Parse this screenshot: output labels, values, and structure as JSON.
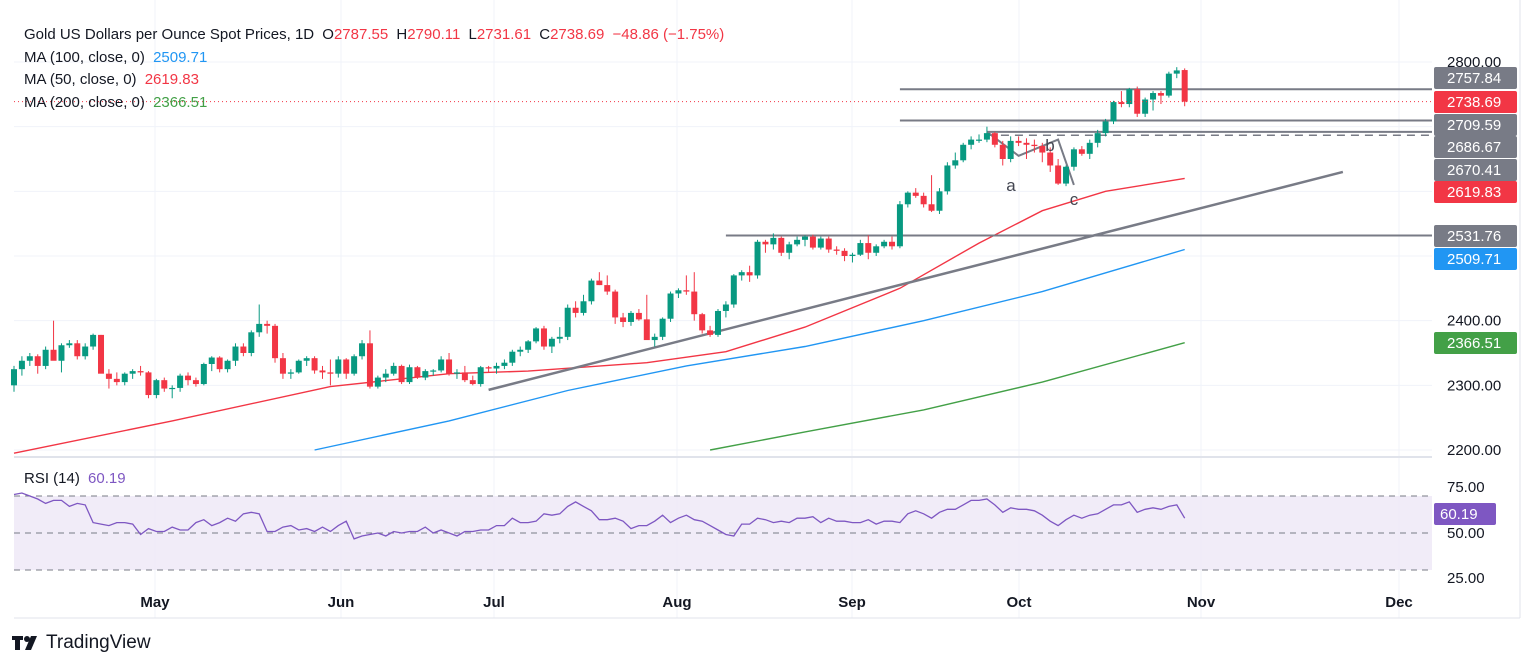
{
  "header": {
    "symbol_title": "Gold US Dollars per Ounce Spot Prices, 1D",
    "ohlc": {
      "open_prefix": "O",
      "open": "2787.55",
      "high_prefix": "H",
      "high": "2790.11",
      "low_prefix": "L",
      "low": "2731.61",
      "close_prefix": "C",
      "close": "2738.69",
      "change": "−48.86 (−1.75%)"
    }
  },
  "indicators": {
    "ma100": {
      "label": "MA (100, close, 0)",
      "value": "2509.71",
      "color": "#2196f3"
    },
    "ma50": {
      "label": "MA (50, close, 0)",
      "value": "2619.83",
      "color": "#f23645"
    },
    "ma200": {
      "label": "MA (200, close, 0)",
      "value": "2366.51",
      "color": "#43a047"
    },
    "rsi": {
      "label": "RSI (14)",
      "value": "60.19",
      "color": "#7e57c2"
    }
  },
  "colors": {
    "up": "#089981",
    "down": "#f23645",
    "drawing": "#787b86",
    "rsi_band": "#ede7f6",
    "grid": "#f0f3fa"
  },
  "brand": {
    "name": "TradingView"
  },
  "chart_data": {
    "type": "candlestick",
    "title": "Gold US Dollars per Ounce Spot Prices, 1D",
    "price_axis": {
      "ticks": [
        "2800.00",
        "2400.00",
        "2300.00",
        "2200.00"
      ],
      "range": [
        2200,
        2800
      ]
    },
    "time_axis": {
      "ticks": [
        "May",
        "Jun",
        "Jul",
        "Aug",
        "Sep",
        "Oct",
        "Nov",
        "Dec"
      ]
    },
    "price_tags": [
      {
        "value": "2757.84",
        "kind": "drawing"
      },
      {
        "value": "2738.69",
        "kind": "last"
      },
      {
        "value": "2709.59",
        "kind": "drawing"
      },
      {
        "value": "2686.67",
        "kind": "drawing"
      },
      {
        "value": "2670.41",
        "kind": "drawing"
      },
      {
        "value": "2619.83",
        "kind": "ma50"
      },
      {
        "value": "2531.76",
        "kind": "drawing"
      },
      {
        "value": "2509.71",
        "kind": "ma100"
      },
      {
        "value": "2366.51",
        "kind": "ma200"
      }
    ],
    "horizontal_levels": [
      {
        "price": 2757.84,
        "from_index": 112,
        "style": "solid"
      },
      {
        "price": 2709.59,
        "from_index": 112,
        "style": "solid"
      },
      {
        "price": 2692.0,
        "from_index": 123,
        "style": "solid"
      },
      {
        "price": 2686.67,
        "from_index": 123,
        "style": "dashed"
      },
      {
        "price": 2531.76,
        "from_index": 90,
        "style": "solid"
      }
    ],
    "trendline": {
      "start": {
        "index": 60,
        "price": 2293
      },
      "end": {
        "index": 168,
        "price": 2630
      }
    },
    "wave_labels": [
      {
        "text": "a",
        "index": 127,
        "price": 2658
      },
      {
        "text": "b",
        "index": 132,
        "price": 2682
      },
      {
        "text": "c",
        "index": 134,
        "price": 2602
      }
    ],
    "wave_path": [
      {
        "index": 123,
        "price": 2692
      },
      {
        "index": 127,
        "price": 2655
      },
      {
        "index": 132,
        "price": 2680
      },
      {
        "index": 134,
        "price": 2610
      }
    ],
    "candles": [
      [
        2300,
        2330,
        2290,
        2325
      ],
      [
        2325,
        2345,
        2315,
        2338
      ],
      [
        2338,
        2350,
        2330,
        2345
      ],
      [
        2345,
        2348,
        2318,
        2330
      ],
      [
        2330,
        2360,
        2325,
        2355
      ],
      [
        2355,
        2400,
        2340,
        2338
      ],
      [
        2338,
        2365,
        2320,
        2362
      ],
      [
        2362,
        2370,
        2358,
        2365
      ],
      [
        2365,
        2370,
        2340,
        2345
      ],
      [
        2345,
        2365,
        2340,
        2360
      ],
      [
        2360,
        2380,
        2355,
        2378
      ],
      [
        2378,
        2378,
        2330,
        2318
      ],
      [
        2318,
        2325,
        2295,
        2310
      ],
      [
        2310,
        2320,
        2300,
        2305
      ],
      [
        2305,
        2320,
        2300,
        2318
      ],
      [
        2318,
        2325,
        2310,
        2322
      ],
      [
        2322,
        2330,
        2315,
        2320
      ],
      [
        2320,
        2322,
        2280,
        2285
      ],
      [
        2285,
        2310,
        2280,
        2308
      ],
      [
        2308,
        2312,
        2290,
        2295
      ],
      [
        2295,
        2300,
        2280,
        2296
      ],
      [
        2296,
        2318,
        2290,
        2315
      ],
      [
        2315,
        2320,
        2300,
        2308
      ],
      [
        2308,
        2312,
        2298,
        2302
      ],
      [
        2302,
        2335,
        2300,
        2333
      ],
      [
        2333,
        2345,
        2322,
        2343
      ],
      [
        2343,
        2345,
        2320,
        2325
      ],
      [
        2325,
        2340,
        2320,
        2338
      ],
      [
        2338,
        2365,
        2330,
        2360
      ],
      [
        2360,
        2365,
        2345,
        2350
      ],
      [
        2350,
        2385,
        2345,
        2382
      ],
      [
        2382,
        2425,
        2375,
        2395
      ],
      [
        2395,
        2400,
        2380,
        2392
      ],
      [
        2392,
        2395,
        2335,
        2342
      ],
      [
        2342,
        2350,
        2310,
        2318
      ],
      [
        2318,
        2325,
        2310,
        2320
      ],
      [
        2320,
        2340,
        2318,
        2338
      ],
      [
        2338,
        2345,
        2330,
        2342
      ],
      [
        2342,
        2345,
        2318,
        2323
      ],
      [
        2323,
        2330,
        2310,
        2320
      ],
      [
        2320,
        2340,
        2300,
        2318
      ],
      [
        2318,
        2345,
        2312,
        2340
      ],
      [
        2340,
        2342,
        2310,
        2318
      ],
      [
        2318,
        2348,
        2315,
        2345
      ],
      [
        2345,
        2370,
        2340,
        2365
      ],
      [
        2365,
        2385,
        2295,
        2298
      ],
      [
        2298,
        2315,
        2295,
        2312
      ],
      [
        2312,
        2325,
        2305,
        2318
      ],
      [
        2318,
        2335,
        2315,
        2330
      ],
      [
        2330,
        2332,
        2302,
        2305
      ],
      [
        2305,
        2332,
        2302,
        2328
      ],
      [
        2328,
        2330,
        2310,
        2312
      ],
      [
        2312,
        2325,
        2308,
        2322
      ],
      [
        2322,
        2325,
        2315,
        2323
      ],
      [
        2323,
        2345,
        2320,
        2340
      ],
      [
        2340,
        2350,
        2315,
        2318
      ],
      [
        2318,
        2325,
        2310,
        2320
      ],
      [
        2320,
        2330,
        2305,
        2308
      ],
      [
        2308,
        2315,
        2300,
        2302
      ],
      [
        2302,
        2330,
        2298,
        2328
      ],
      [
        2328,
        2330,
        2320,
        2326
      ],
      [
        2326,
        2335,
        2318,
        2330
      ],
      [
        2330,
        2340,
        2325,
        2335
      ],
      [
        2335,
        2355,
        2330,
        2352
      ],
      [
        2352,
        2360,
        2345,
        2355
      ],
      [
        2355,
        2370,
        2350,
        2368
      ],
      [
        2368,
        2390,
        2365,
        2388
      ],
      [
        2388,
        2392,
        2355,
        2360
      ],
      [
        2360,
        2375,
        2350,
        2372
      ],
      [
        2372,
        2390,
        2365,
        2375
      ],
      [
        2375,
        2425,
        2370,
        2420
      ],
      [
        2420,
        2430,
        2405,
        2412
      ],
      [
        2412,
        2440,
        2408,
        2430
      ],
      [
        2430,
        2465,
        2425,
        2462
      ],
      [
        2462,
        2475,
        2455,
        2455
      ],
      [
        2455,
        2470,
        2440,
        2445
      ],
      [
        2445,
        2448,
        2395,
        2405
      ],
      [
        2405,
        2412,
        2390,
        2398
      ],
      [
        2398,
        2415,
        2392,
        2412
      ],
      [
        2412,
        2418,
        2400,
        2402
      ],
      [
        2402,
        2440,
        2400,
        2370
      ],
      [
        2370,
        2380,
        2360,
        2375
      ],
      [
        2375,
        2405,
        2370,
        2403
      ],
      [
        2403,
        2445,
        2398,
        2442
      ],
      [
        2442,
        2450,
        2435,
        2447
      ],
      [
        2447,
        2470,
        2440,
        2445
      ],
      [
        2445,
        2475,
        2400,
        2410
      ],
      [
        2410,
        2412,
        2380,
        2385
      ],
      [
        2385,
        2392,
        2375,
        2378
      ],
      [
        2378,
        2418,
        2375,
        2415
      ],
      [
        2415,
        2430,
        2405,
        2425
      ],
      [
        2425,
        2472,
        2420,
        2470
      ],
      [
        2470,
        2478,
        2462,
        2475
      ],
      [
        2475,
        2485,
        2460,
        2470
      ],
      [
        2470,
        2525,
        2465,
        2522
      ],
      [
        2522,
        2525,
        2505,
        2518
      ],
      [
        2518,
        2535,
        2510,
        2528
      ],
      [
        2528,
        2530,
        2500,
        2505
      ],
      [
        2505,
        2522,
        2495,
        2518
      ],
      [
        2518,
        2530,
        2515,
        2525
      ],
      [
        2525,
        2532,
        2515,
        2530
      ],
      [
        2530,
        2533,
        2510,
        2513
      ],
      [
        2513,
        2530,
        2510,
        2527
      ],
      [
        2527,
        2530,
        2505,
        2510
      ],
      [
        2510,
        2515,
        2502,
        2508
      ],
      [
        2508,
        2512,
        2492,
        2500
      ],
      [
        2500,
        2505,
        2490,
        2502
      ],
      [
        2502,
        2525,
        2500,
        2520
      ],
      [
        2520,
        2532,
        2495,
        2505
      ],
      [
        2505,
        2518,
        2500,
        2515
      ],
      [
        2515,
        2525,
        2512,
        2522
      ],
      [
        2522,
        2530,
        2510,
        2515
      ],
      [
        2515,
        2585,
        2512,
        2580
      ],
      [
        2580,
        2600,
        2575,
        2598
      ],
      [
        2598,
        2605,
        2590,
        2593
      ],
      [
        2593,
        2598,
        2575,
        2580
      ],
      [
        2580,
        2625,
        2568,
        2570
      ],
      [
        2570,
        2605,
        2565,
        2600
      ],
      [
        2600,
        2645,
        2595,
        2640
      ],
      [
        2640,
        2660,
        2635,
        2648
      ],
      [
        2648,
        2675,
        2645,
        2672
      ],
      [
        2672,
        2685,
        2665,
        2680
      ],
      [
        2680,
        2688,
        2675,
        2680
      ],
      [
        2680,
        2700,
        2676,
        2690
      ],
      [
        2690,
        2692,
        2668,
        2672
      ],
      [
        2672,
        2678,
        2640,
        2650
      ],
      [
        2650,
        2685,
        2645,
        2678
      ],
      [
        2678,
        2685,
        2670,
        2675
      ],
      [
        2675,
        2682,
        2650,
        2672
      ],
      [
        2672,
        2680,
        2660,
        2670
      ],
      [
        2670,
        2675,
        2645,
        2660
      ],
      [
        2660,
        2668,
        2630,
        2640
      ],
      [
        2640,
        2650,
        2610,
        2612
      ],
      [
        2612,
        2640,
        2608,
        2638
      ],
      [
        2638,
        2668,
        2632,
        2665
      ],
      [
        2665,
        2670,
        2655,
        2658
      ],
      [
        2658,
        2680,
        2650,
        2675
      ],
      [
        2675,
        2695,
        2668,
        2690
      ],
      [
        2690,
        2712,
        2685,
        2708
      ],
      [
        2708,
        2740,
        2704,
        2738
      ],
      [
        2738,
        2755,
        2730,
        2735
      ],
      [
        2735,
        2760,
        2730,
        2758
      ],
      [
        2758,
        2762,
        2715,
        2720
      ],
      [
        2720,
        2745,
        2715,
        2742
      ],
      [
        2742,
        2755,
        2725,
        2752
      ],
      [
        2752,
        2755,
        2735,
        2748
      ],
      [
        2748,
        2785,
        2745,
        2782
      ],
      [
        2782,
        2792,
        2775,
        2787
      ],
      [
        2787.55,
        2790.11,
        2731.61,
        2738.69
      ]
    ],
    "ma50": [
      [
        0,
        2195
      ],
      [
        20,
        2245
      ],
      [
        40,
        2298
      ],
      [
        55,
        2318
      ],
      [
        65,
        2322
      ],
      [
        80,
        2335
      ],
      [
        90,
        2352
      ],
      [
        100,
        2390
      ],
      [
        112,
        2450
      ],
      [
        122,
        2520
      ],
      [
        130,
        2570
      ],
      [
        138,
        2600
      ],
      [
        148,
        2620
      ]
    ],
    "ma100": [
      [
        38,
        2200
      ],
      [
        55,
        2245
      ],
      [
        70,
        2292
      ],
      [
        85,
        2330
      ],
      [
        100,
        2360
      ],
      [
        115,
        2400
      ],
      [
        130,
        2445
      ],
      [
        148,
        2510
      ]
    ],
    "ma200": [
      [
        88,
        2200
      ],
      [
        100,
        2228
      ],
      [
        115,
        2262
      ],
      [
        130,
        2305
      ],
      [
        148,
        2366
      ]
    ],
    "rsi": {
      "axis_ticks": [
        "75.00",
        "50.00",
        "25.00"
      ],
      "upper": 70,
      "middle": 50,
      "lower": 30,
      "values": [
        76,
        77,
        75,
        73,
        70,
        72,
        72,
        68,
        70,
        69,
        57,
        56,
        55,
        57,
        57,
        56,
        49,
        53,
        51,
        51,
        54,
        52,
        52,
        57,
        59,
        55,
        57,
        60,
        58,
        63,
        64,
        63,
        51,
        51,
        54,
        55,
        52,
        53,
        51,
        54,
        51,
        55,
        58,
        46,
        48,
        49,
        50,
        48,
        51,
        50,
        51,
        51,
        54,
        50,
        52,
        50,
        48,
        51,
        51,
        52,
        52,
        55,
        55,
        60,
        57,
        57,
        58,
        63,
        62,
        63,
        68,
        71,
        68,
        65,
        59,
        59,
        60,
        58,
        53,
        55,
        55,
        58,
        62,
        57,
        60,
        62,
        59,
        58,
        55,
        52,
        49,
        48,
        56,
        56,
        60,
        59,
        57,
        58,
        57,
        60,
        60,
        61,
        57,
        60,
        58,
        58,
        57,
        57,
        59,
        56,
        58,
        58,
        57,
        63,
        65,
        63,
        60,
        64,
        66,
        66,
        69,
        72,
        72,
        73,
        69,
        64,
        67,
        66,
        66,
        65,
        62,
        58,
        55,
        59,
        62,
        60,
        62,
        63,
        66,
        69,
        69,
        71,
        64,
        66,
        67,
        66,
        68,
        69,
        60
      ]
    }
  }
}
